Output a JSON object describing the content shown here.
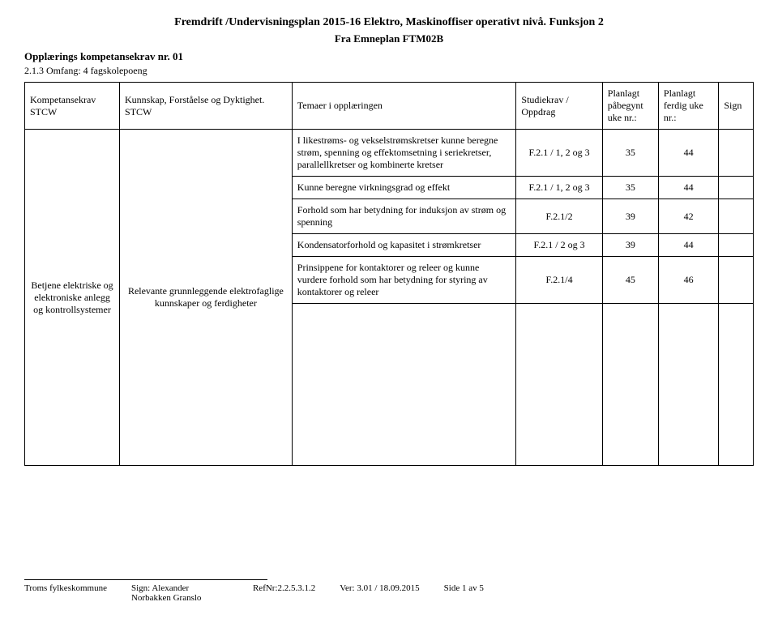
{
  "header": {
    "title": "Fremdrift /Undervisningsplan 2015-16 Elektro, Maskinoffiser operativt nivå.  Funksjon 2",
    "subtitle": "Fra Emneplan FTM02B",
    "opplaerings": "Opplærings kompetansekrav nr. 01",
    "scope": "2.1.3 Omfang: 4 fagskolepoeng"
  },
  "columns": {
    "kompetanse": "Kompetansekrav STCW",
    "kunnskap": "Kunnskap, Forståelse og Dyktighet. STCW",
    "temaer": "Temaer i opplæringen",
    "studie": "Studiekrav / Oppdrag",
    "begynt": "Planlagt påbegynt uke nr.:",
    "ferdig": "Planlagt ferdig uke nr.:",
    "sign": "Sign"
  },
  "group": {
    "kompetanse": "Betjene elektriske og elektroniske anlegg og kontrollsystemer",
    "kunnskap": "Relevante grunnleggende elektrofaglige kunnskaper og ferdigheter"
  },
  "rows": [
    {
      "tema": "I likestrøms- og vekselstrømskretser kunne beregne strøm, spenning og effektomsetning i seriekretser, parallellkretser og kombinerte kretser",
      "studie": "F.2.1 / 1, 2 og 3",
      "begynt": "35",
      "ferdig": "44"
    },
    {
      "tema": "Kunne beregne virkningsgrad og effekt",
      "studie": "F.2.1 / 1, 2 og 3",
      "begynt": "35",
      "ferdig": "44"
    },
    {
      "tema": "Forhold som har betydning for induksjon av strøm og spenning",
      "studie": "F.2.1/2",
      "begynt": "39",
      "ferdig": "42"
    },
    {
      "tema": "Kondensatorforhold og kapasitet i strømkretser",
      "studie": "F.2.1 / 2 og 3",
      "begynt": "39",
      "ferdig": "44"
    },
    {
      "tema": "Prinsippene for kontaktorer og releer og kunne vurdere forhold som har betydning for styring av kontaktorer og releer",
      "studie": "F.2.1/4",
      "begynt": "45",
      "ferdig": "46"
    }
  ],
  "footer": {
    "org": "Troms fylkeskommune",
    "sign_label": "Sign: Alexander",
    "sign_name2": "Norbakken Granslo",
    "ref": "RefNr:2.2.5.3.1.2",
    "ver": "Ver: 3.01 / 18.09.2015",
    "side": "Side 1 av 5"
  }
}
